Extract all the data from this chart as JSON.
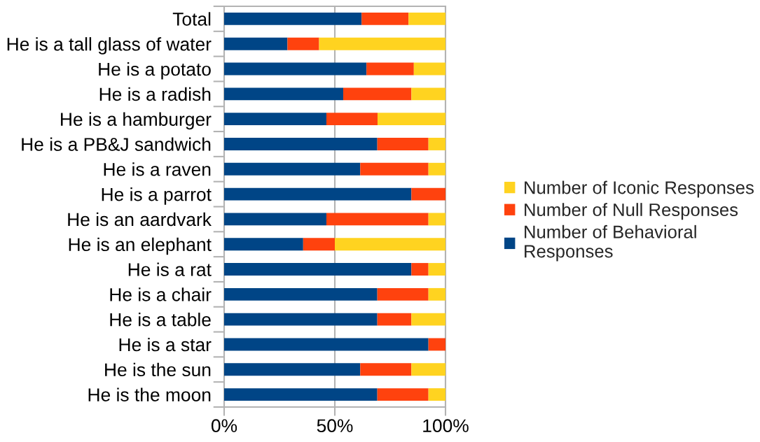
{
  "chart_data": {
    "type": "bar",
    "orientation": "horizontal",
    "stacked": true,
    "categories": [
      "Total",
      "He is a tall glass of water",
      "He is a potato",
      "He is a radish",
      "He is a hamburger",
      "He is a PB&J sandwich",
      "He is a raven",
      "He is a parrot",
      "He is an aardvark",
      "He is an elephant",
      "He is a rat",
      "He is a chair",
      "He is a table",
      "He is a star",
      "He is the sun",
      "He is the moon"
    ],
    "series": [
      {
        "name": "Number of Behavioral Responses",
        "color": "#004586",
        "values": [
          62.1,
          28.6,
          64.3,
          53.8,
          46.2,
          69.2,
          61.5,
          84.6,
          46.2,
          35.7,
          84.6,
          69.2,
          69.2,
          92.3,
          61.5,
          69.2
        ]
      },
      {
        "name": "Number of Null Responses",
        "color": "#ff420e",
        "values": [
          21.2,
          14.3,
          21.4,
          30.8,
          23.1,
          23.1,
          30.8,
          15.4,
          46.1,
          14.3,
          7.7,
          23.1,
          15.4,
          7.7,
          23.1,
          23.1
        ]
      },
      {
        "name": "Number of Iconic Responses",
        "color": "#ffd320",
        "values": [
          16.7,
          57.1,
          14.3,
          15.4,
          30.7,
          7.7,
          7.7,
          0,
          7.7,
          50.0,
          7.7,
          7.7,
          15.4,
          0,
          15.4,
          7.7
        ]
      }
    ],
    "xlim": [
      0,
      100
    ],
    "xticks": [
      {
        "value": 0,
        "label": "0%"
      },
      {
        "value": 50,
        "label": "50%"
      },
      {
        "value": 100,
        "label": "100%"
      }
    ],
    "grid": "x",
    "legend": "right"
  }
}
